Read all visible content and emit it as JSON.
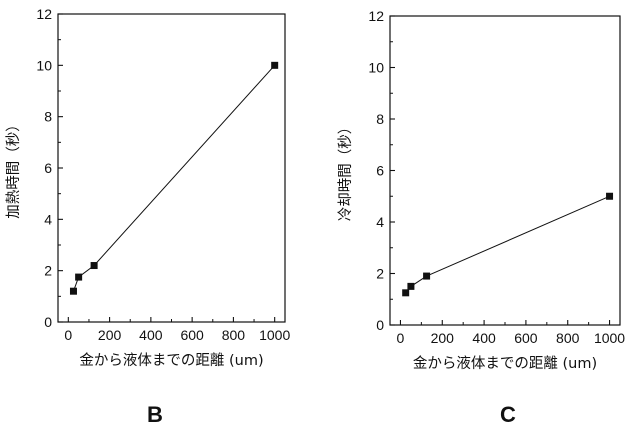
{
  "chart_data": [
    {
      "type": "line",
      "panel_label": "B",
      "xlabel": "金から液体までの距離 (um)",
      "ylabel": "加熱時間（秒）",
      "xlim": [
        -50,
        1050
      ],
      "ylim": [
        0,
        12
      ],
      "xticks": [
        0,
        200,
        400,
        600,
        800,
        1000
      ],
      "yticks": [
        0,
        2,
        4,
        6,
        8,
        10,
        12
      ],
      "grid": false,
      "marker": "square",
      "series": [
        {
          "x": [
            25,
            50,
            125,
            1000
          ],
          "y": [
            1.2,
            1.75,
            2.2,
            10.0
          ]
        }
      ]
    },
    {
      "type": "line",
      "panel_label": "C",
      "xlabel": "金から液体までの距離 (um)",
      "ylabel": "冷却時間（秒）",
      "xlim": [
        -50,
        1050
      ],
      "ylim": [
        0,
        12
      ],
      "xticks": [
        0,
        200,
        400,
        600,
        800,
        1000
      ],
      "yticks": [
        0,
        2,
        4,
        6,
        8,
        10,
        12
      ],
      "grid": false,
      "marker": "square",
      "series": [
        {
          "x": [
            25,
            50,
            125,
            1000
          ],
          "y": [
            1.25,
            1.5,
            1.9,
            5.0
          ]
        }
      ]
    }
  ]
}
